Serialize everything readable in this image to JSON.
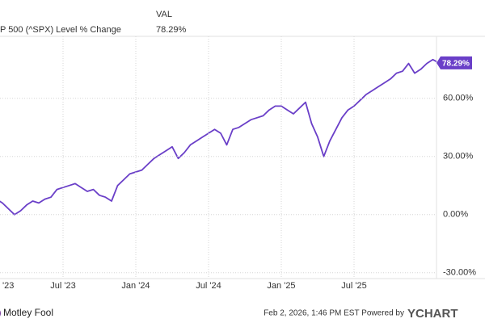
{
  "chart_data": {
    "type": "line",
    "header_column": "VAL",
    "categories": [
      "'23",
      null,
      null,
      null,
      null,
      null,
      null,
      null,
      null,
      null,
      null,
      null,
      "Jul '23",
      null,
      null,
      null,
      null,
      null,
      null,
      null,
      null,
      null,
      null,
      null,
      "Jan '24",
      null,
      null,
      null,
      null,
      null,
      null,
      null,
      null,
      null,
      null,
      null,
      "Jul '24",
      null,
      null,
      null,
      null,
      null,
      null,
      null,
      null,
      null,
      null,
      null,
      "Jan '25",
      null,
      null,
      null,
      null,
      null,
      null,
      null,
      null,
      null,
      null,
      null,
      "Jul '25",
      null,
      null,
      null,
      null,
      null,
      null,
      null,
      null,
      null,
      null,
      null,
      null,
      null,
      null
    ],
    "series": [
      {
        "name": "P 500 (^SPX) Level % Change",
        "color": "#6a3fc8",
        "values": [
          9,
          8,
          6,
          3,
          0,
          2,
          5,
          7,
          6,
          8,
          9,
          13,
          14,
          15,
          16,
          14,
          12,
          13,
          10,
          9,
          7,
          15,
          18,
          21,
          22,
          23,
          26,
          29,
          31,
          33,
          35,
          29,
          32,
          36,
          38,
          40,
          42,
          44,
          42,
          36,
          44,
          45,
          47,
          49,
          50,
          51,
          54,
          56,
          56,
          54,
          52,
          55,
          58,
          47,
          40,
          30,
          38,
          44,
          50,
          54,
          56,
          59,
          62,
          64,
          66,
          68,
          70,
          73,
          74,
          78,
          73,
          75,
          78,
          80,
          78.29
        ],
        "value_labels": [
          null,
          null,
          null,
          null,
          null,
          null,
          null,
          null,
          null,
          null,
          null,
          null,
          null,
          null,
          null,
          null,
          null,
          null,
          null,
          null,
          null,
          null,
          null,
          null,
          null,
          null,
          null,
          null,
          null,
          null,
          null,
          null,
          null,
          null,
          null,
          null,
          null,
          null,
          null,
          null,
          null,
          null,
          null,
          null,
          null,
          null,
          null,
          null,
          null,
          null,
          null,
          null,
          null,
          null,
          null,
          null,
          null,
          null,
          null,
          null,
          null,
          null,
          null,
          null,
          null,
          null,
          null,
          null,
          null,
          null,
          null,
          null,
          null,
          null,
          "78.29%"
        ]
      }
    ],
    "ylim": [
      -33,
      92
    ],
    "yticks": [
      {
        "value": -30,
        "label": "-30.00%"
      },
      {
        "value": 0,
        "label": "0.00%"
      },
      {
        "value": 30,
        "label": "30.00%"
      },
      {
        "value": 60,
        "label": "60.00%"
      }
    ],
    "grid": true,
    "source": "Motley Fool",
    "footer": "Feb 2, 2026, 1:46 PM EST Powered by",
    "brand": "YCHART"
  }
}
